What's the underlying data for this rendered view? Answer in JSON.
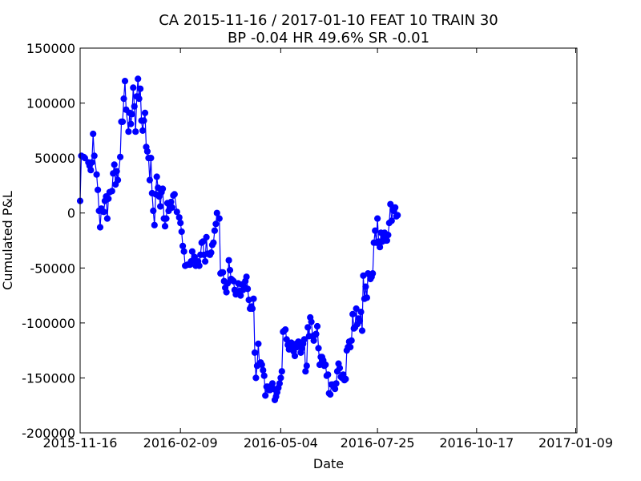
{
  "chart_data": {
    "type": "line",
    "title": "CA 2015-11-16 / 2017-01-10 FEAT 10 TRAIN 30",
    "subtitle": "BP -0.04 HR 49.6%  SR -0.01",
    "xlabel": "Date",
    "ylabel": "Cumulated P&L",
    "xlim": [
      "2015-11-16",
      "2017-01-10"
    ],
    "ylim": [
      -200000,
      150000
    ],
    "x_ticks": [
      "2015-11-16",
      "2016-02-09",
      "2016-05-04",
      "2016-07-25",
      "2016-10-17",
      "2017-01-09"
    ],
    "y_ticks": [
      150000,
      100000,
      50000,
      0,
      -50000,
      -100000,
      -150000,
      -200000
    ],
    "grid": false,
    "series": [
      {
        "color": "#0000ff",
        "marker": "circle",
        "points": [
          [
            "2015-11-16",
            11000
          ],
          [
            "2015-11-17",
            52000
          ],
          [
            "2015-11-19",
            51000
          ],
          [
            "2015-11-20",
            50000
          ],
          [
            "2015-11-23",
            46000
          ],
          [
            "2015-11-24",
            43000
          ],
          [
            "2015-11-25",
            39000
          ],
          [
            "2015-11-26",
            46000
          ],
          [
            "2015-11-27",
            72000
          ],
          [
            "2015-11-28",
            52000
          ],
          [
            "2015-11-30",
            35000
          ],
          [
            "2015-12-01",
            21000
          ],
          [
            "2015-12-02",
            2000
          ],
          [
            "2015-12-03",
            -13000
          ],
          [
            "2015-12-04",
            4000
          ],
          [
            "2015-12-06",
            1000
          ],
          [
            "2015-12-07",
            11000
          ],
          [
            "2015-12-08",
            15000
          ],
          [
            "2015-12-09",
            -5000
          ],
          [
            "2015-12-10",
            13000
          ],
          [
            "2015-12-11",
            19000
          ],
          [
            "2015-12-13",
            20000
          ],
          [
            "2015-12-14",
            36000
          ],
          [
            "2015-12-15",
            44000
          ],
          [
            "2015-12-16",
            26000
          ],
          [
            "2015-12-17",
            38000
          ],
          [
            "2015-12-18",
            30000
          ],
          [
            "2015-12-20",
            51000
          ],
          [
            "2015-12-21",
            83000
          ],
          [
            "2015-12-22",
            83000
          ],
          [
            "2015-12-23",
            104000
          ],
          [
            "2015-12-24",
            120000
          ],
          [
            "2015-12-25",
            94000
          ],
          [
            "2015-12-27",
            74000
          ],
          [
            "2015-12-28",
            91000
          ],
          [
            "2015-12-29",
            81000
          ],
          [
            "2015-12-30",
            90000
          ],
          [
            "2015-12-31",
            114000
          ],
          [
            "2016-01-01",
            97000
          ],
          [
            "2016-01-02",
            74000
          ],
          [
            "2016-01-03",
            106000
          ],
          [
            "2016-01-04",
            122000
          ],
          [
            "2016-01-05",
            104000
          ],
          [
            "2016-01-06",
            113000
          ],
          [
            "2016-01-07",
            84000
          ],
          [
            "2016-01-08",
            75000
          ],
          [
            "2016-01-09",
            84000
          ],
          [
            "2016-01-10",
            91000
          ],
          [
            "2016-01-11",
            60000
          ],
          [
            "2016-01-12",
            56000
          ],
          [
            "2016-01-13",
            50000
          ],
          [
            "2016-01-14",
            30000
          ],
          [
            "2016-01-15",
            50000
          ],
          [
            "2016-01-16",
            18000
          ],
          [
            "2016-01-17",
            2000
          ],
          [
            "2016-01-18",
            -11000
          ],
          [
            "2016-01-19",
            17000
          ],
          [
            "2016-01-20",
            33000
          ],
          [
            "2016-01-21",
            23000
          ],
          [
            "2016-01-22",
            15000
          ],
          [
            "2016-01-23",
            6000
          ],
          [
            "2016-01-24",
            19000
          ],
          [
            "2016-01-25",
            22000
          ],
          [
            "2016-01-26",
            -5000
          ],
          [
            "2016-01-27",
            -12000
          ],
          [
            "2016-01-28",
            -5000
          ],
          [
            "2016-01-29",
            9000
          ],
          [
            "2016-01-30",
            2000
          ],
          [
            "2016-01-31",
            6000
          ],
          [
            "2016-02-01",
            10000
          ],
          [
            "2016-02-02",
            5000
          ],
          [
            "2016-02-03",
            16000
          ],
          [
            "2016-02-04",
            17000
          ],
          [
            "2016-02-06",
            1000
          ],
          [
            "2016-02-08",
            -4000
          ],
          [
            "2016-02-09",
            -9000
          ],
          [
            "2016-02-10",
            -17000
          ],
          [
            "2016-02-11",
            -30000
          ],
          [
            "2016-02-12",
            -35000
          ],
          [
            "2016-02-13",
            -48000
          ],
          [
            "2016-02-15",
            -47000
          ],
          [
            "2016-02-17",
            -47000
          ],
          [
            "2016-02-18",
            -44000
          ],
          [
            "2016-02-19",
            -35000
          ],
          [
            "2016-02-20",
            -43000
          ],
          [
            "2016-02-21",
            -40000
          ],
          [
            "2016-02-22",
            -48000
          ],
          [
            "2016-02-23",
            -45000
          ],
          [
            "2016-02-24",
            -44000
          ],
          [
            "2016-02-25",
            -48000
          ],
          [
            "2016-02-26",
            -38000
          ],
          [
            "2016-02-27",
            -27000
          ],
          [
            "2016-02-28",
            -26000
          ],
          [
            "2016-02-29",
            -38000
          ],
          [
            "2016-03-01",
            -44000
          ],
          [
            "2016-03-02",
            -22000
          ],
          [
            "2016-03-03",
            -37000
          ],
          [
            "2016-03-05",
            -38000
          ],
          [
            "2016-03-06",
            -36000
          ],
          [
            "2016-03-07",
            -29000
          ],
          [
            "2016-03-08",
            -27000
          ],
          [
            "2016-03-09",
            -16000
          ],
          [
            "2016-03-10",
            -10000
          ],
          [
            "2016-03-11",
            0
          ],
          [
            "2016-03-13",
            -5000
          ],
          [
            "2016-03-14",
            -55000
          ],
          [
            "2016-03-15",
            -54000
          ],
          [
            "2016-03-16",
            -54000
          ],
          [
            "2016-03-17",
            -62000
          ],
          [
            "2016-03-18",
            -68000
          ],
          [
            "2016-03-19",
            -72000
          ],
          [
            "2016-03-20",
            -64000
          ],
          [
            "2016-03-21",
            -43000
          ],
          [
            "2016-03-22",
            -52000
          ],
          [
            "2016-03-23",
            -60000
          ],
          [
            "2016-03-24",
            -61000
          ],
          [
            "2016-03-25",
            -62000
          ],
          [
            "2016-03-26",
            -70000
          ],
          [
            "2016-03-27",
            -74000
          ],
          [
            "2016-03-29",
            -64000
          ],
          [
            "2016-03-30",
            -71000
          ],
          [
            "2016-03-31",
            -75000
          ],
          [
            "2016-04-01",
            -65000
          ],
          [
            "2016-04-02",
            -70000
          ],
          [
            "2016-04-03",
            -67000
          ],
          [
            "2016-04-04",
            -62000
          ],
          [
            "2016-04-05",
            -58000
          ],
          [
            "2016-04-06",
            -69000
          ],
          [
            "2016-04-07",
            -79000
          ],
          [
            "2016-04-08",
            -87000
          ],
          [
            "2016-04-09",
            -85000
          ],
          [
            "2016-04-10",
            -87000
          ],
          [
            "2016-04-11",
            -78000
          ],
          [
            "2016-04-12",
            -127000
          ],
          [
            "2016-04-13",
            -150000
          ],
          [
            "2016-04-14",
            -139000
          ],
          [
            "2016-04-15",
            -119000
          ],
          [
            "2016-04-16",
            -137000
          ],
          [
            "2016-04-17",
            -136000
          ],
          [
            "2016-04-18",
            -138000
          ],
          [
            "2016-04-19",
            -143000
          ],
          [
            "2016-04-20",
            -148000
          ],
          [
            "2016-04-21",
            -166000
          ],
          [
            "2016-04-22",
            -158000
          ],
          [
            "2016-04-23",
            -158000
          ],
          [
            "2016-04-24",
            -161000
          ],
          [
            "2016-04-25",
            -161000
          ],
          [
            "2016-04-26",
            -160000
          ],
          [
            "2016-04-27",
            -155000
          ],
          [
            "2016-04-28",
            -160000
          ],
          [
            "2016-04-29",
            -170000
          ],
          [
            "2016-04-30",
            -167000
          ],
          [
            "2016-05-01",
            -163000
          ],
          [
            "2016-05-02",
            -159000
          ],
          [
            "2016-05-03",
            -155000
          ],
          [
            "2016-05-04",
            -150000
          ],
          [
            "2016-05-05",
            -144000
          ],
          [
            "2016-05-06",
            -108000
          ],
          [
            "2016-05-07",
            -107000
          ],
          [
            "2016-05-08",
            -106000
          ],
          [
            "2016-05-09",
            -115000
          ],
          [
            "2016-05-10",
            -120000
          ],
          [
            "2016-05-11",
            -124000
          ],
          [
            "2016-05-12",
            -122000
          ],
          [
            "2016-05-13",
            -118000
          ],
          [
            "2016-05-14",
            -123000
          ],
          [
            "2016-05-15",
            -126000
          ],
          [
            "2016-05-16",
            -130000
          ],
          [
            "2016-05-17",
            -119000
          ],
          [
            "2016-05-18",
            -122000
          ],
          [
            "2016-05-19",
            -117000
          ],
          [
            "2016-05-20",
            -118000
          ],
          [
            "2016-05-21",
            -127000
          ],
          [
            "2016-05-22",
            -123000
          ],
          [
            "2016-05-23",
            -119000
          ],
          [
            "2016-05-24",
            -115000
          ],
          [
            "2016-05-25",
            -144000
          ],
          [
            "2016-05-26",
            -139000
          ],
          [
            "2016-05-27",
            -104000
          ],
          [
            "2016-05-28",
            -112000
          ],
          [
            "2016-05-29",
            -95000
          ],
          [
            "2016-05-30",
            -99000
          ],
          [
            "2016-05-31",
            -112000
          ],
          [
            "2016-06-01",
            -116000
          ],
          [
            "2016-06-02",
            -111000
          ],
          [
            "2016-06-03",
            -110000
          ],
          [
            "2016-06-04",
            -103000
          ],
          [
            "2016-06-05",
            -123000
          ],
          [
            "2016-06-06",
            -138000
          ],
          [
            "2016-06-07",
            -131000
          ],
          [
            "2016-06-08",
            -131000
          ],
          [
            "2016-06-09",
            -134000
          ],
          [
            "2016-06-10",
            -139000
          ],
          [
            "2016-06-11",
            -138000
          ],
          [
            "2016-06-12",
            -148000
          ],
          [
            "2016-06-13",
            -147000
          ],
          [
            "2016-06-14",
            -164000
          ],
          [
            "2016-06-15",
            -165000
          ],
          [
            "2016-06-16",
            -156000
          ],
          [
            "2016-06-17",
            -156000
          ],
          [
            "2016-06-18",
            -158000
          ],
          [
            "2016-06-19",
            -160000
          ],
          [
            "2016-06-20",
            -155000
          ],
          [
            "2016-06-21",
            -144000
          ],
          [
            "2016-06-22",
            -137000
          ],
          [
            "2016-06-23",
            -141000
          ],
          [
            "2016-06-24",
            -149000
          ],
          [
            "2016-06-25",
            -150000
          ],
          [
            "2016-06-26",
            -147000
          ],
          [
            "2016-06-27",
            -152000
          ],
          [
            "2016-06-28",
            -151000
          ],
          [
            "2016-06-29",
            -125000
          ],
          [
            "2016-06-30",
            -122000
          ],
          [
            "2016-07-01",
            -117000
          ],
          [
            "2016-07-02",
            -122000
          ],
          [
            "2016-07-03",
            -116000
          ],
          [
            "2016-07-04",
            -92000
          ],
          [
            "2016-07-05",
            -105000
          ],
          [
            "2016-07-06",
            -104000
          ],
          [
            "2016-07-07",
            -87000
          ],
          [
            "2016-07-08",
            -101000
          ],
          [
            "2016-07-09",
            -96000
          ],
          [
            "2016-07-10",
            -98000
          ],
          [
            "2016-07-11",
            -90000
          ],
          [
            "2016-07-12",
            -107000
          ],
          [
            "2016-07-13",
            -57000
          ],
          [
            "2016-07-14",
            -78000
          ],
          [
            "2016-07-15",
            -67000
          ],
          [
            "2016-07-16",
            -77000
          ],
          [
            "2016-07-17",
            -55000
          ],
          [
            "2016-07-18",
            -56000
          ],
          [
            "2016-07-19",
            -60000
          ],
          [
            "2016-07-20",
            -58000
          ],
          [
            "2016-07-21",
            -55000
          ],
          [
            "2016-07-22",
            -27000
          ],
          [
            "2016-07-23",
            -16000
          ],
          [
            "2016-07-24",
            -27000
          ],
          [
            "2016-07-25",
            -5000
          ],
          [
            "2016-07-26",
            -26000
          ],
          [
            "2016-07-27",
            -31000
          ],
          [
            "2016-07-28",
            -18000
          ],
          [
            "2016-07-29",
            -26000
          ],
          [
            "2016-07-30",
            -22000
          ],
          [
            "2016-07-31",
            -18000
          ],
          [
            "2016-08-01",
            -25000
          ],
          [
            "2016-08-02",
            -25000
          ],
          [
            "2016-08-03",
            -20000
          ],
          [
            "2016-08-04",
            -9000
          ],
          [
            "2016-08-05",
            8000
          ],
          [
            "2016-08-06",
            -7000
          ],
          [
            "2016-08-07",
            3000
          ],
          [
            "2016-08-08",
            2000
          ],
          [
            "2016-08-09",
            5000
          ],
          [
            "2016-08-10",
            -3000
          ],
          [
            "2016-08-11",
            -2000
          ]
        ]
      }
    ]
  }
}
